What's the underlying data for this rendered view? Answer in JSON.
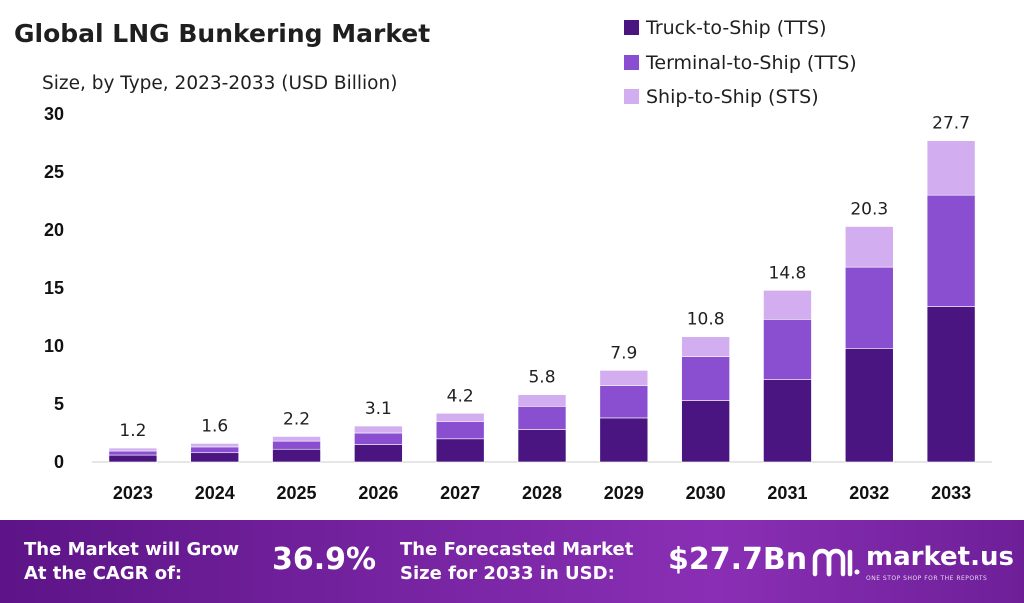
{
  "header": {
    "title": "Global LNG Bunkering Market",
    "subtitle": "Size, by Type, 2023-2033 (USD Billion)"
  },
  "chart_data": {
    "type": "bar",
    "stacked": true,
    "title": "Global LNG Bunkering Market",
    "subtitle": "Size, by Type, 2023-2033 (USD Billion)",
    "categories": [
      "2023",
      "2024",
      "2025",
      "2026",
      "2027",
      "2028",
      "2029",
      "2030",
      "2031",
      "2032",
      "2033"
    ],
    "series": [
      {
        "name": "Truck-to-Ship (TTS)",
        "color": "#4a1580",
        "values": [
          0.6,
          0.8,
          1.1,
          1.5,
          2.0,
          2.8,
          3.8,
          5.3,
          7.1,
          9.8,
          13.4
        ]
      },
      {
        "name": "Terminal-to-Ship (TTS)",
        "color": "#8a4fd0",
        "values": [
          0.35,
          0.5,
          0.7,
          1.0,
          1.5,
          2.0,
          2.8,
          3.8,
          5.2,
          7.0,
          9.6
        ]
      },
      {
        "name": "Ship-to-Ship (STS)",
        "color": "#d2aef0",
        "values": [
          0.25,
          0.3,
          0.4,
          0.6,
          0.7,
          1.0,
          1.3,
          1.7,
          2.5,
          3.5,
          4.7
        ]
      }
    ],
    "totals": [
      "1.2",
      "1.6",
      "2.2",
      "3.1",
      "4.2",
      "5.8",
      "7.9",
      "10.8",
      "14.8",
      "20.3",
      "27.7"
    ],
    "yticks": [
      0,
      5,
      10,
      15,
      20,
      25,
      30
    ],
    "ylim": [
      0,
      30
    ],
    "grid": false,
    "legend_position": "top-right"
  },
  "footer": {
    "cagr_label": "The Market will Grow At the CAGR of:",
    "cagr_value": "36.9%",
    "forecast_label": "The Forecasted Market Size for 2033 in USD:",
    "forecast_value": "$27.7Bn",
    "brand": "market.us",
    "brand_tagline": "ONE STOP SHOP FOR THE REPORTS"
  }
}
